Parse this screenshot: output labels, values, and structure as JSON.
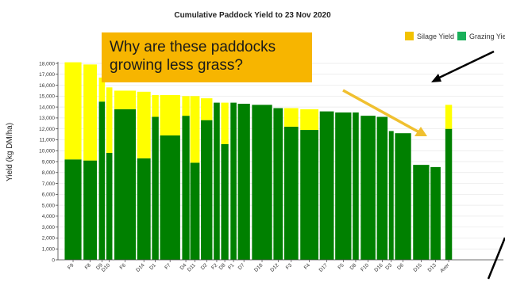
{
  "colors": {
    "silage": "#ffff00",
    "grazing": "#008000",
    "legend_grazing": "#19b05a",
    "legend_silage": "#f2c200",
    "callout_bg": "#f7b500",
    "arrow": "#f0c030",
    "axis": "#444444",
    "grid": "#e8e8e8"
  },
  "callout": {
    "line1": "Why are these paddocks",
    "line2": "growing less grass?"
  },
  "chart_data": {
    "type": "bar",
    "stacked": true,
    "title": "Cumulative Paddock Yield to 23 Nov 2020",
    "ylabel": "Yield (kg DM/ha)",
    "xlabel": "",
    "ylim": [
      0,
      18000
    ],
    "yticks": [
      0,
      1000,
      2000,
      3000,
      4000,
      5000,
      6000,
      7000,
      8000,
      9000,
      10000,
      11000,
      12000,
      13000,
      14000,
      15000,
      16000,
      17000,
      18000
    ],
    "ytick_labels": [
      "0",
      "1,000",
      "2,000",
      "3,000",
      "4,000",
      "5,000",
      "6,000",
      "7,000",
      "8,000",
      "9,000",
      "10,000",
      "11,000",
      "12,000",
      "13,000",
      "14,000",
      "15,000",
      "16,000",
      "17,000",
      "18,000"
    ],
    "grid": true,
    "legend": {
      "position": "top-right",
      "entries": [
        "Silage Yield",
        "Grazing Yie"
      ]
    },
    "categories": [
      "F9",
      "F8",
      "D9",
      "D10",
      "F6",
      "D14",
      "D1",
      "F7",
      "D4",
      "D11",
      "D2",
      "F2",
      "D8",
      "F1",
      "D7",
      "D18",
      "D12",
      "F3",
      "F4",
      "D17",
      "F5",
      "D8",
      "F10",
      "D16",
      "D3",
      "D6",
      "D15",
      "D13",
      "Aver"
    ],
    "series": [
      {
        "name": "Grazing Yie",
        "values": [
          9200,
          9100,
          14500,
          9800,
          13800,
          9300,
          13100,
          11400,
          13200,
          8900,
          12800,
          14400,
          10600,
          14400,
          14300,
          14200,
          13900,
          12200,
          11900,
          13600,
          13500,
          13500,
          13200,
          13100,
          11800,
          11600,
          8700,
          8500,
          12000
        ]
      },
      {
        "name": "Silage Yield",
        "values": [
          8900,
          8800,
          2200,
          6000,
          1700,
          6100,
          2000,
          3700,
          1800,
          6100,
          2000,
          0,
          3800,
          0,
          0,
          0,
          0,
          1700,
          1900,
          0,
          0,
          0,
          0,
          0,
          0,
          0,
          0,
          0,
          2200
        ]
      }
    ]
  }
}
